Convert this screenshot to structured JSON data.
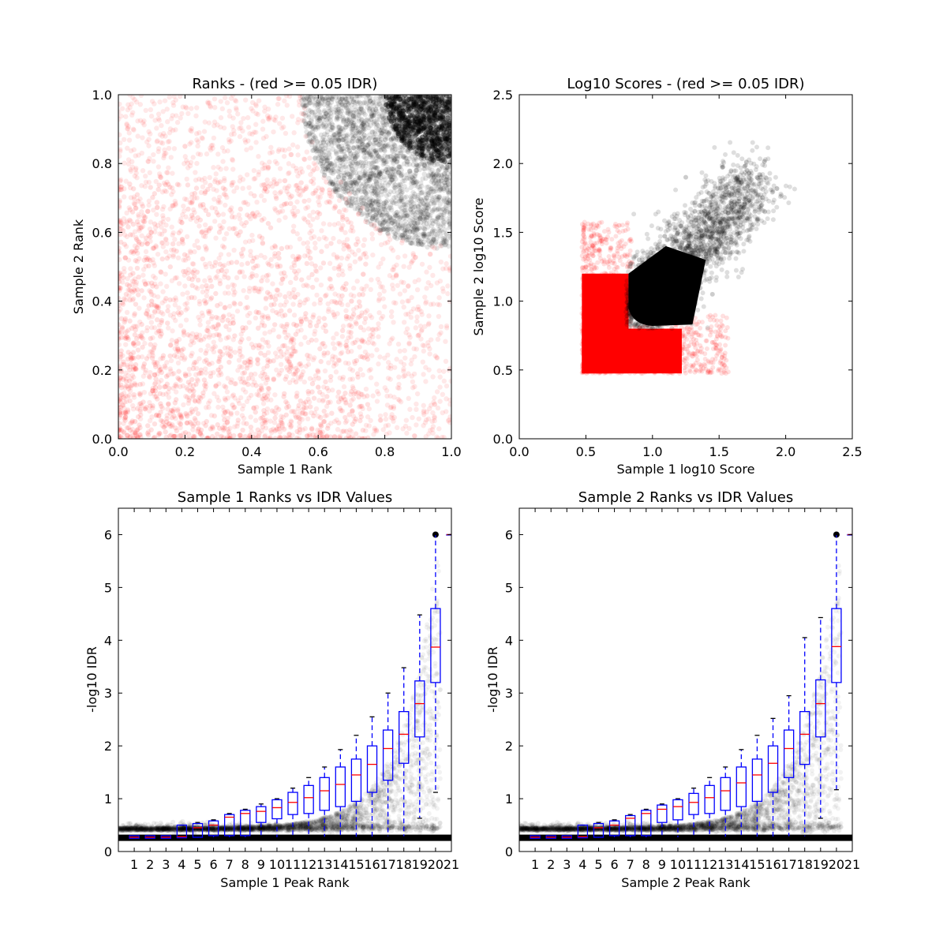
{
  "chart_data": [
    {
      "type": "scatter",
      "title": "Ranks - (red >= 0.05 IDR)",
      "xlabel": "Sample 1 Rank",
      "ylabel": "Sample 2 Rank",
      "xlim": [
        0.0,
        1.0
      ],
      "ylim": [
        0.0,
        1.0
      ],
      "xticks": [
        "0.0",
        "0.2",
        "0.4",
        "0.6",
        "0.8",
        "1.0"
      ],
      "yticks": [
        "0.0",
        "0.2",
        "0.4",
        "0.6",
        "0.8",
        "1.0"
      ],
      "grid": false,
      "colors": {
        "fail": "#ff0000",
        "pass": "#000000"
      },
      "series": [
        {
          "color": "#ff0000",
          "distribution": "uniform over full square, density decreasing toward top-right",
          "points": [
            [
              0.05,
              0.05
            ],
            [
              0.15,
              0.1
            ],
            [
              0.3,
              0.2
            ],
            [
              0.1,
              0.4
            ],
            [
              0.25,
              0.6
            ],
            [
              0.45,
              0.35
            ],
            [
              0.6,
              0.15
            ],
            [
              0.7,
              0.4
            ],
            [
              0.2,
              0.85
            ],
            [
              0.5,
              0.75
            ],
            [
              0.9,
              0.3
            ],
            [
              0.95,
              0.1
            ]
          ]
        },
        {
          "color": "#000000",
          "distribution": "dense cluster in top-right corner bounded by arc from (0.55,1.0) to (1.0,0.55)",
          "points": [
            [
              0.9,
              0.9
            ],
            [
              0.95,
              0.97
            ],
            [
              0.8,
              0.85
            ],
            [
              0.85,
              0.7
            ],
            [
              0.7,
              0.92
            ],
            [
              0.97,
              0.65
            ],
            [
              0.6,
              0.98
            ],
            [
              0.75,
              0.75
            ]
          ]
        }
      ]
    },
    {
      "type": "scatter",
      "title": "Log10 Scores - (red >= 0.05 IDR)",
      "xlabel": "Sample 1 log10 Score",
      "ylabel": "Sample 2 log10 Score",
      "xlim": [
        0.0,
        2.5
      ],
      "ylim": [
        0.0,
        2.5
      ],
      "xticks": [
        "0.0",
        "0.5",
        "1.0",
        "1.5",
        "2.0",
        "2.5"
      ],
      "yticks": [
        "0.0",
        "0.5",
        "1.0",
        "1.5",
        "2.0",
        "2.5"
      ],
      "grid": false,
      "series": [
        {
          "color": "#ff0000",
          "distribution": "dense block x 0.47-1.5, y 0.47-1.5, floor at 0.47",
          "points": [
            [
              0.5,
              0.5
            ],
            [
              0.6,
              0.7
            ],
            [
              0.7,
              1.1
            ],
            [
              0.5,
              1.25
            ],
            [
              0.9,
              0.6
            ],
            [
              1.1,
              0.55
            ],
            [
              1.3,
              0.6
            ],
            [
              1.45,
              0.7
            ],
            [
              0.55,
              1.4
            ],
            [
              0.75,
              1.55
            ]
          ]
        },
        {
          "color": "#000000",
          "distribution": "dense band x 0.8-1.8, y 0.8-1.9 above diagonal",
          "points": [
            [
              1.0,
              1.1
            ],
            [
              1.2,
              1.2
            ],
            [
              1.3,
              1.35
            ],
            [
              1.5,
              1.5
            ],
            [
              1.6,
              1.6
            ],
            [
              1.7,
              1.75
            ],
            [
              1.8,
              1.85
            ],
            [
              1.25,
              1.9
            ],
            [
              0.9,
              1.3
            ],
            [
              1.45,
              1.05
            ]
          ]
        }
      ]
    },
    {
      "type": "box",
      "title": "Sample 1 Ranks vs IDR Values",
      "xlabel": "Sample 1 Peak Rank",
      "ylabel": "-log10 IDR",
      "xlim": [
        0,
        21
      ],
      "ylim": [
        0,
        6.5
      ],
      "yticks": [
        "0",
        "1",
        "2",
        "3",
        "4",
        "5",
        "6"
      ],
      "categories": [
        "1",
        "2",
        "3",
        "4",
        "5",
        "6",
        "7",
        "8",
        "9",
        "10",
        "11",
        "12",
        "13",
        "14",
        "15",
        "16",
        "17",
        "18",
        "19",
        "20",
        "21"
      ],
      "boxes": [
        {
          "q1": 0.25,
          "median": 0.27,
          "q3": 0.3,
          "whislo": 0.25,
          "whishi": 0.3
        },
        {
          "q1": 0.25,
          "median": 0.27,
          "q3": 0.3,
          "whislo": 0.25,
          "whishi": 0.3
        },
        {
          "q1": 0.25,
          "median": 0.27,
          "q3": 0.3,
          "whislo": 0.25,
          "whishi": 0.3
        },
        {
          "q1": 0.26,
          "median": 0.28,
          "q3": 0.5,
          "whislo": 0.25,
          "whishi": 0.5
        },
        {
          "q1": 0.27,
          "median": 0.45,
          "q3": 0.53,
          "whislo": 0.25,
          "whishi": 0.55
        },
        {
          "q1": 0.3,
          "median": 0.5,
          "q3": 0.58,
          "whislo": 0.26,
          "whishi": 0.6
        },
        {
          "q1": 0.3,
          "median": 0.65,
          "q3": 0.7,
          "whislo": 0.26,
          "whishi": 0.72
        },
        {
          "q1": 0.3,
          "median": 0.72,
          "q3": 0.78,
          "whislo": 0.26,
          "whishi": 0.8
        },
        {
          "q1": 0.55,
          "median": 0.76,
          "q3": 0.85,
          "whislo": 0.26,
          "whishi": 0.9
        },
        {
          "q1": 0.62,
          "median": 0.83,
          "q3": 0.98,
          "whislo": 0.26,
          "whishi": 1.0
        },
        {
          "q1": 0.7,
          "median": 0.93,
          "q3": 1.12,
          "whislo": 0.26,
          "whishi": 1.2
        },
        {
          "q1": 0.72,
          "median": 1.02,
          "q3": 1.25,
          "whislo": 0.27,
          "whishi": 1.4
        },
        {
          "q1": 0.78,
          "median": 1.15,
          "q3": 1.4,
          "whislo": 0.27,
          "whishi": 1.6
        },
        {
          "q1": 0.85,
          "median": 1.27,
          "q3": 1.6,
          "whislo": 0.27,
          "whishi": 1.93
        },
        {
          "q1": 0.95,
          "median": 1.45,
          "q3": 1.75,
          "whislo": 0.27,
          "whishi": 2.2
        },
        {
          "q1": 1.12,
          "median": 1.65,
          "q3": 2.0,
          "whislo": 0.27,
          "whishi": 2.55
        },
        {
          "q1": 1.35,
          "median": 1.95,
          "q3": 2.3,
          "whislo": 0.28,
          "whishi": 3.0
        },
        {
          "q1": 1.67,
          "median": 2.22,
          "q3": 2.65,
          "whislo": 0.28,
          "whishi": 3.48
        },
        {
          "q1": 2.17,
          "median": 2.8,
          "q3": 3.23,
          "whislo": 0.63,
          "whishi": 4.48
        },
        {
          "q1": 3.2,
          "median": 3.87,
          "q3": 4.6,
          "whislo": 1.12,
          "whishi": 6.0
        },
        {
          "q1": 6.0,
          "median": 6.0,
          "q3": 6.0,
          "whislo": 6.0,
          "whishi": 6.0
        }
      ]
    },
    {
      "type": "box",
      "title": "Sample 2 Ranks vs IDR Values",
      "xlabel": "Sample 2 Peak Rank",
      "ylabel": "-log10 IDR",
      "xlim": [
        0,
        21
      ],
      "ylim": [
        0,
        6.5
      ],
      "yticks": [
        "0",
        "1",
        "2",
        "3",
        "4",
        "5",
        "6"
      ],
      "categories": [
        "1",
        "2",
        "3",
        "4",
        "5",
        "6",
        "7",
        "8",
        "9",
        "10",
        "11",
        "12",
        "13",
        "14",
        "15",
        "16",
        "17",
        "18",
        "19",
        "20",
        "21"
      ],
      "boxes": [
        {
          "q1": 0.25,
          "median": 0.27,
          "q3": 0.3,
          "whislo": 0.25,
          "whishi": 0.3
        },
        {
          "q1": 0.25,
          "median": 0.27,
          "q3": 0.3,
          "whislo": 0.25,
          "whishi": 0.3
        },
        {
          "q1": 0.25,
          "median": 0.27,
          "q3": 0.3,
          "whislo": 0.25,
          "whishi": 0.3
        },
        {
          "q1": 0.26,
          "median": 0.28,
          "q3": 0.5,
          "whislo": 0.25,
          "whishi": 0.5
        },
        {
          "q1": 0.27,
          "median": 0.45,
          "q3": 0.53,
          "whislo": 0.25,
          "whishi": 0.55
        },
        {
          "q1": 0.3,
          "median": 0.5,
          "q3": 0.58,
          "whislo": 0.26,
          "whishi": 0.6
        },
        {
          "q1": 0.3,
          "median": 0.63,
          "q3": 0.68,
          "whislo": 0.26,
          "whishi": 0.7
        },
        {
          "q1": 0.3,
          "median": 0.72,
          "q3": 0.78,
          "whislo": 0.26,
          "whishi": 0.8
        },
        {
          "q1": 0.55,
          "median": 0.8,
          "q3": 0.88,
          "whislo": 0.26,
          "whishi": 0.9
        },
        {
          "q1": 0.6,
          "median": 0.85,
          "q3": 0.98,
          "whislo": 0.26,
          "whishi": 1.0
        },
        {
          "q1": 0.7,
          "median": 0.93,
          "q3": 1.1,
          "whislo": 0.26,
          "whishi": 1.2
        },
        {
          "q1": 0.72,
          "median": 1.02,
          "q3": 1.25,
          "whislo": 0.27,
          "whishi": 1.4
        },
        {
          "q1": 0.78,
          "median": 1.15,
          "q3": 1.4,
          "whislo": 0.27,
          "whishi": 1.6
        },
        {
          "q1": 0.85,
          "median": 1.3,
          "q3": 1.6,
          "whislo": 0.27,
          "whishi": 1.93
        },
        {
          "q1": 0.95,
          "median": 1.45,
          "q3": 1.75,
          "whislo": 0.27,
          "whishi": 2.2
        },
        {
          "q1": 1.12,
          "median": 1.67,
          "q3": 2.0,
          "whislo": 0.27,
          "whishi": 2.52
        },
        {
          "q1": 1.4,
          "median": 1.95,
          "q3": 2.3,
          "whislo": 0.28,
          "whishi": 2.95
        },
        {
          "q1": 1.65,
          "median": 2.22,
          "q3": 2.65,
          "whislo": 0.28,
          "whishi": 4.05
        },
        {
          "q1": 2.17,
          "median": 2.8,
          "q3": 3.25,
          "whislo": 0.63,
          "whishi": 4.43
        },
        {
          "q1": 3.2,
          "median": 3.88,
          "q3": 4.6,
          "whislo": 1.17,
          "whishi": 6.0
        },
        {
          "q1": 6.0,
          "median": 6.0,
          "q3": 6.0,
          "whislo": 6.0,
          "whishi": 6.0
        }
      ]
    }
  ]
}
